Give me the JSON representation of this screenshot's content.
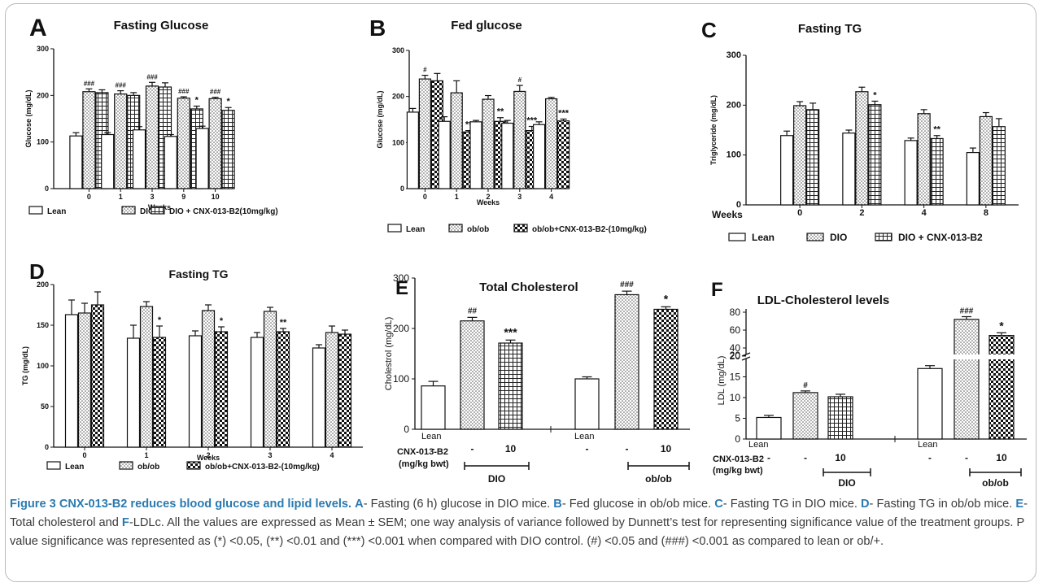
{
  "colors": {
    "accent": "#2a7ab0",
    "frame": "#b9b9b9",
    "bar_edge": "#111111"
  },
  "chart_data": [
    {
      "panel": "A",
      "type": "bar",
      "title": "Fasting Glucose",
      "ylabel": "Glucose (mg/dL)",
      "xlabel": "Weeks",
      "ylim": [
        0,
        300
      ],
      "yticks": [
        "0",
        "100",
        "200",
        "300"
      ],
      "categories": [
        "0",
        "1",
        "3",
        "9",
        "10"
      ],
      "series": [
        {
          "name": "Lean",
          "pattern": "plain",
          "values": [
            113,
            116,
            126,
            112,
            129
          ],
          "errors": [
            7,
            4,
            7,
            4,
            5
          ]
        },
        {
          "name": "DIO",
          "pattern": "dots",
          "values": [
            208,
            203,
            220,
            194,
            193
          ],
          "errors": [
            6,
            7,
            8,
            3,
            3
          ]
        },
        {
          "name": "DIO + CNX-013-B2(10mg/kg)",
          "pattern": "grid",
          "values": [
            206,
            200,
            218,
            171,
            168
          ],
          "errors": [
            6,
            6,
            9,
            6,
            6
          ]
        }
      ],
      "annotations": [
        {
          "series": 1,
          "cat": 0,
          "text": "###"
        },
        {
          "series": 1,
          "cat": 1,
          "text": "###"
        },
        {
          "series": 1,
          "cat": 2,
          "text": "###"
        },
        {
          "series": 1,
          "cat": 3,
          "text": "###"
        },
        {
          "series": 1,
          "cat": 4,
          "text": "###"
        },
        {
          "series": 2,
          "cat": 3,
          "text": "*"
        },
        {
          "series": 2,
          "cat": 4,
          "text": "*"
        }
      ]
    },
    {
      "panel": "B",
      "type": "bar",
      "title": "Fed glucose",
      "ylabel": "Glucose (mg/dL)",
      "xlabel": "Weeks",
      "ylim": [
        0,
        300
      ],
      "yticks": [
        "0",
        "100",
        "200",
        "300"
      ],
      "categories": [
        "0",
        "1",
        "2",
        "3",
        "4"
      ],
      "series": [
        {
          "name": "Lean",
          "pattern": "plain",
          "values": [
            166,
            146,
            145,
            142,
            139
          ],
          "errors": [
            8,
            10,
            3,
            6,
            6
          ]
        },
        {
          "name": "ob/ob",
          "pattern": "dots",
          "values": [
            238,
            208,
            194,
            211,
            195
          ],
          "errors": [
            8,
            26,
            8,
            13,
            3
          ]
        },
        {
          "name": "ob/ob+CNX-013-B2-(10mg/kg)",
          "pattern": "check",
          "values": [
            234,
            123,
            146,
            126,
            147
          ],
          "errors": [
            16,
            3,
            8,
            9,
            4
          ]
        }
      ],
      "annotations": [
        {
          "series": 1,
          "cat": 0,
          "text": "#"
        },
        {
          "series": 1,
          "cat": 3,
          "text": "#"
        },
        {
          "series": 2,
          "cat": 1,
          "text": "**"
        },
        {
          "series": 2,
          "cat": 2,
          "text": "**"
        },
        {
          "series": 2,
          "cat": 3,
          "text": "***"
        },
        {
          "series": 2,
          "cat": 4,
          "text": "***"
        }
      ]
    },
    {
      "panel": "C",
      "type": "bar",
      "title": "Fasting TG",
      "ylabel": "Triglyceride (mg/dL)",
      "xlabel": "Weeks",
      "ylim": [
        0,
        300
      ],
      "yticks": [
        "0",
        "100",
        "200",
        "300"
      ],
      "categories": [
        "0",
        "2",
        "4",
        "8"
      ],
      "series": [
        {
          "name": "Lean",
          "pattern": "plain",
          "values": [
            139,
            144,
            129,
            105
          ],
          "errors": [
            9,
            6,
            5,
            9
          ]
        },
        {
          "name": "DIO",
          "pattern": "dots",
          "values": [
            199,
            227,
            183,
            177
          ],
          "errors": [
            8,
            9,
            8,
            8
          ]
        },
        {
          "name": "DIO + CNX-013-B2",
          "pattern": "grid",
          "values": [
            191,
            201,
            133,
            157
          ],
          "errors": [
            13,
            7,
            6,
            16
          ]
        }
      ],
      "annotations": [
        {
          "series": 2,
          "cat": 1,
          "text": "*"
        },
        {
          "series": 2,
          "cat": 2,
          "text": "**"
        }
      ]
    },
    {
      "panel": "D",
      "type": "bar",
      "title": "Fasting TG",
      "ylabel": "TG (mg/dL)",
      "xlabel": "Weeks",
      "ylim": [
        0,
        200
      ],
      "yticks": [
        "0",
        "50",
        "100",
        "150",
        "200"
      ],
      "categories": [
        "0",
        "1",
        "2",
        "3",
        "4"
      ],
      "series": [
        {
          "name": "Lean",
          "pattern": "plain",
          "values": [
            163,
            134,
            137,
            135,
            122
          ],
          "errors": [
            18,
            16,
            6,
            6,
            4
          ]
        },
        {
          "name": "ob/ob",
          "pattern": "dots",
          "values": [
            165,
            173,
            168,
            167,
            141
          ],
          "errors": [
            12,
            6,
            7,
            5,
            8
          ]
        },
        {
          "name": "ob/ob+CNX-013-B2-(10mg/kg)",
          "pattern": "check",
          "values": [
            175,
            135,
            142,
            142,
            139
          ],
          "errors": [
            16,
            14,
            6,
            4,
            5
          ]
        }
      ],
      "annotations": [
        {
          "series": 2,
          "cat": 1,
          "text": "*"
        },
        {
          "series": 2,
          "cat": 2,
          "text": "*"
        },
        {
          "series": 2,
          "cat": 3,
          "text": "**"
        }
      ]
    },
    {
      "panel": "E",
      "type": "bar",
      "title": "Total Cholesterol",
      "ylabel": "Cholestrol (mg/dL)",
      "ylim": [
        0,
        300
      ],
      "yticks": [
        "0",
        "100",
        "200",
        "300"
      ],
      "bars": [
        {
          "value": 86,
          "error": 9,
          "pattern": "plain",
          "group": 0,
          "note": ""
        },
        {
          "value": 215,
          "error": 7,
          "pattern": "dots",
          "group": 0,
          "note": "##"
        },
        {
          "value": 171,
          "error": 6,
          "pattern": "grid",
          "group": 0,
          "note": "***"
        },
        {
          "value": 100,
          "error": 4,
          "pattern": "plain",
          "group": 1,
          "note": ""
        },
        {
          "value": 267,
          "error": 7,
          "pattern": "dots",
          "group": 1,
          "note": "###"
        },
        {
          "value": 238,
          "error": 5,
          "pattern": "check",
          "group": 1,
          "note": "*"
        }
      ],
      "lean_label": "Lean",
      "dose_title": "CNX-013-B2",
      "dose_unit": "(mg/kg bwt)",
      "dose_values": [
        "-",
        "-",
        "10",
        "-",
        "-",
        "10"
      ],
      "groups": [
        "DIO",
        "ob/ob"
      ]
    },
    {
      "panel": "F",
      "type": "bar",
      "title": "LDL-Cholesterol levels",
      "ylabel": "LDL (mg/dL)",
      "axis_break": [
        20,
        30
      ],
      "yticks_lower": [
        "0",
        "5",
        "10",
        "15",
        "20"
      ],
      "yticks_upper": [
        "20",
        "40",
        "60",
        "80"
      ],
      "bars": [
        {
          "value": 5.2,
          "error": 0.5,
          "pattern": "plain",
          "group": 0,
          "note": ""
        },
        {
          "value": 11.2,
          "error": 0.4,
          "pattern": "dots",
          "group": 0,
          "note": "#"
        },
        {
          "value": 10.2,
          "error": 0.6,
          "pattern": "grid",
          "group": 0,
          "note": ""
        },
        {
          "value": 17,
          "error": 0.7,
          "pattern": "plain",
          "group": 1,
          "note": ""
        },
        {
          "value": 72,
          "error": 3,
          "pattern": "dots",
          "group": 1,
          "note": "###"
        },
        {
          "value": 54,
          "error": 3,
          "pattern": "check",
          "group": 1,
          "note": "*"
        }
      ],
      "lean_label": "Lean",
      "dose_title": "CNX-013-B2",
      "dose_unit": "(mg/kg bwt)",
      "dose_values": [
        "-",
        "-",
        "10",
        "-",
        "-",
        "10"
      ],
      "groups": [
        "DIO",
        "ob/ob"
      ]
    }
  ],
  "caption": {
    "title": "Figure 3 CNX-013-B2 reduces blood glucose and lipid levels.",
    "segments": [
      {
        "bold": true,
        "text": "A"
      },
      {
        "bold": false,
        "text": "- Fasting (6 h) glucose in DIO mice. "
      },
      {
        "bold": true,
        "text": "B"
      },
      {
        "bold": false,
        "text": "- Fed glucose in ob/ob mice. "
      },
      {
        "bold": true,
        "text": "C"
      },
      {
        "bold": false,
        "text": "- Fasting TG in DIO mice. "
      },
      {
        "bold": true,
        "text": "D"
      },
      {
        "bold": false,
        "text": "- Fasting TG in ob/ob mice. "
      },
      {
        "bold": true,
        "text": "E"
      },
      {
        "bold": false,
        "text": "- Total cholesterol and "
      },
      {
        "bold": true,
        "text": "F"
      },
      {
        "bold": false,
        "text": "-LDLc. All the values are expressed as Mean ± SEM; one way analysis of variance followed by Dunnett’s test for representing significance value of the treatment groups. P value significance was represented as (*) <0.05, (**) <0.01 and (***) <0.001 when compared with DIO control. (#) <0.05 and (###) <0.001 as compared to lean or ob/+."
      }
    ]
  }
}
